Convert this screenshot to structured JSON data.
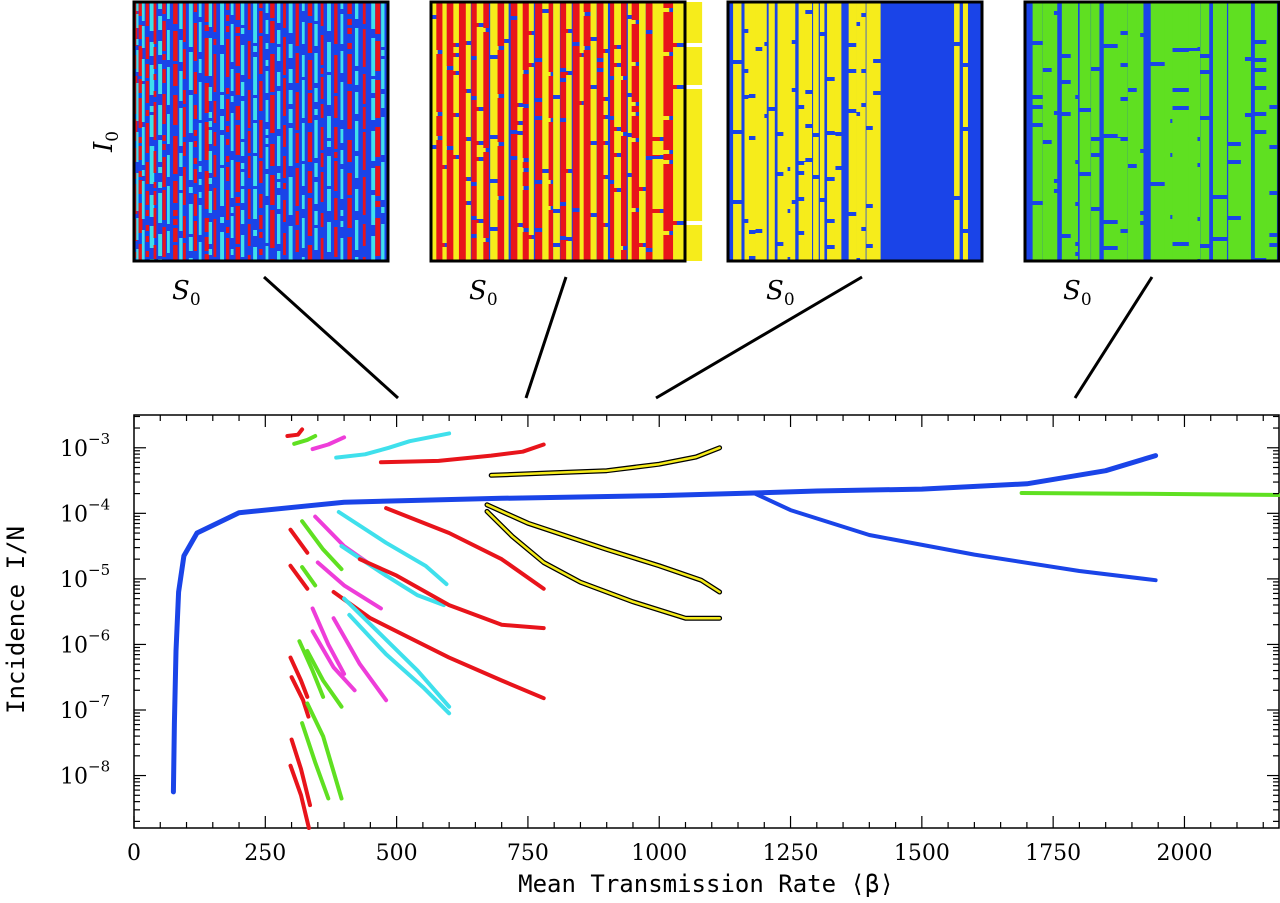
{
  "chart_data": {
    "type": "line",
    "title": "",
    "xlabel": "Mean Transmission Rate  ⟨β⟩",
    "ylabel": "Incidence  I/N",
    "xlim": [
      0,
      2180
    ],
    "ylim_log10": [
      -8.8,
      -2.5
    ],
    "yscale": "log",
    "grid": false,
    "x_ticks": [
      {
        "value": 0,
        "label": "0"
      },
      {
        "value": 250,
        "label": "250"
      },
      {
        "value": 500,
        "label": "500"
      },
      {
        "value": 750,
        "label": "750"
      },
      {
        "value": 1000,
        "label": "1000"
      },
      {
        "value": 1250,
        "label": "1250"
      },
      {
        "value": 1500,
        "label": "1500"
      },
      {
        "value": 1750,
        "label": "1750"
      },
      {
        "value": 2000,
        "label": "2000"
      }
    ],
    "y_ticks": [
      {
        "exp": -3,
        "base": "10",
        "sup": "−3"
      },
      {
        "exp": -4,
        "base": "10",
        "sup": "−4"
      },
      {
        "exp": -5,
        "base": "10",
        "sup": "−5"
      },
      {
        "exp": -6,
        "base": "10",
        "sup": "−6"
      },
      {
        "exp": -7,
        "base": "10",
        "sup": "−7"
      },
      {
        "exp": -8,
        "base": "10",
        "sup": "−8"
      }
    ],
    "series": [
      {
        "color": "#1a44e8",
        "width": 5,
        "outline": false,
        "points": [
          [
            75,
            -8.25
          ],
          [
            77,
            -7.2
          ],
          [
            80,
            -6.1
          ],
          [
            85,
            -5.2
          ],
          [
            95,
            -4.65
          ],
          [
            120,
            -4.3
          ],
          [
            200,
            -3.99
          ],
          [
            400,
            -3.83
          ],
          [
            700,
            -3.77
          ],
          [
            1000,
            -3.73
          ],
          [
            1180,
            -3.69
          ],
          [
            1300,
            -3.66
          ],
          [
            1500,
            -3.63
          ],
          [
            1700,
            -3.55
          ],
          [
            1850,
            -3.35
          ],
          [
            1945,
            -3.12
          ]
        ]
      },
      {
        "color": "#1a44e8",
        "width": 4,
        "outline": false,
        "points": [
          [
            1180,
            -3.69
          ],
          [
            1250,
            -3.95
          ],
          [
            1400,
            -4.33
          ],
          [
            1600,
            -4.63
          ],
          [
            1800,
            -4.88
          ],
          [
            1945,
            -5.02
          ]
        ]
      },
      {
        "color": "#5fe021",
        "width": 4,
        "outline": false,
        "points": [
          [
            1690,
            -3.69
          ],
          [
            1900,
            -3.7
          ],
          [
            2180,
            -3.72
          ]
        ]
      },
      {
        "color": "#e8141b",
        "width": 4,
        "outline": false,
        "points": [
          [
            292,
            -2.82
          ],
          [
            312,
            -2.8
          ],
          [
            320,
            -2.72
          ]
        ]
      },
      {
        "color": "#5fe021",
        "width": 4,
        "outline": false,
        "points": [
          [
            305,
            -2.94
          ],
          [
            330,
            -2.88
          ],
          [
            345,
            -2.82
          ]
        ]
      },
      {
        "color": "#ee3dd9",
        "width": 4,
        "outline": false,
        "points": [
          [
            340,
            -3.02
          ],
          [
            370,
            -2.95
          ],
          [
            400,
            -2.84
          ]
        ]
      },
      {
        "color": "#3fe0ec",
        "width": 4,
        "outline": false,
        "points": [
          [
            385,
            -3.15
          ],
          [
            440,
            -3.1
          ],
          [
            485,
            -3.0
          ],
          [
            525,
            -2.9
          ],
          [
            600,
            -2.78
          ]
        ]
      },
      {
        "color": "#e8141b",
        "width": 4,
        "outline": false,
        "points": [
          [
            470,
            -3.22
          ],
          [
            580,
            -3.2
          ],
          [
            680,
            -3.12
          ],
          [
            740,
            -3.06
          ],
          [
            780,
            -2.95
          ]
        ]
      },
      {
        "color": "#f6ec1b",
        "width": 4,
        "outline": true,
        "points": [
          [
            680,
            -3.42
          ],
          [
            800,
            -3.38
          ],
          [
            900,
            -3.35
          ],
          [
            1000,
            -3.25
          ],
          [
            1070,
            -3.14
          ],
          [
            1115,
            -3.0
          ]
        ]
      },
      {
        "color": "#e8141b",
        "width": 4,
        "outline": false,
        "points": [
          [
            298,
            -4.25
          ],
          [
            330,
            -4.6
          ]
        ]
      },
      {
        "color": "#e8141b",
        "width": 4,
        "outline": false,
        "points": [
          [
            298,
            -4.8
          ],
          [
            330,
            -5.15
          ]
        ]
      },
      {
        "color": "#5fe021",
        "width": 4,
        "outline": false,
        "points": [
          [
            320,
            -4.12
          ],
          [
            360,
            -4.55
          ],
          [
            395,
            -4.85
          ]
        ]
      },
      {
        "color": "#5fe021",
        "width": 4,
        "outline": false,
        "points": [
          [
            320,
            -4.82
          ],
          [
            345,
            -5.1
          ]
        ]
      },
      {
        "color": "#ee3dd9",
        "width": 4,
        "outline": false,
        "points": [
          [
            345,
            -4.05
          ],
          [
            400,
            -4.5
          ],
          [
            480,
            -4.95
          ]
        ]
      },
      {
        "color": "#ee3dd9",
        "width": 4,
        "outline": false,
        "points": [
          [
            350,
            -4.75
          ],
          [
            400,
            -5.1
          ],
          [
            470,
            -5.45
          ]
        ]
      },
      {
        "color": "#3fe0ec",
        "width": 4,
        "outline": false,
        "points": [
          [
            390,
            -3.98
          ],
          [
            480,
            -4.45
          ],
          [
            555,
            -4.8
          ],
          [
            595,
            -5.08
          ]
        ]
      },
      {
        "color": "#3fe0ec",
        "width": 4,
        "outline": false,
        "points": [
          [
            395,
            -4.5
          ],
          [
            470,
            -4.9
          ],
          [
            540,
            -5.25
          ],
          [
            590,
            -5.4
          ]
        ]
      },
      {
        "color": "#e8141b",
        "width": 4,
        "outline": false,
        "points": [
          [
            480,
            -3.92
          ],
          [
            600,
            -4.3
          ],
          [
            700,
            -4.7
          ],
          [
            780,
            -5.15
          ]
        ]
      },
      {
        "color": "#e8141b",
        "width": 4,
        "outline": false,
        "points": [
          [
            430,
            -4.7
          ],
          [
            500,
            -4.95
          ],
          [
            600,
            -5.4
          ],
          [
            700,
            -5.7
          ],
          [
            780,
            -5.75
          ]
        ]
      },
      {
        "color": "#e8141b",
        "width": 4,
        "outline": false,
        "points": [
          [
            380,
            -5.2
          ],
          [
            450,
            -5.6
          ],
          [
            600,
            -6.2
          ],
          [
            700,
            -6.55
          ],
          [
            780,
            -6.82
          ]
        ]
      },
      {
        "color": "#f6ec1b",
        "width": 4,
        "outline": true,
        "points": [
          [
            672,
            -3.87
          ],
          [
            750,
            -4.15
          ],
          [
            900,
            -4.55
          ],
          [
            1000,
            -4.8
          ],
          [
            1080,
            -5.02
          ],
          [
            1115,
            -5.2
          ]
        ]
      },
      {
        "color": "#f6ec1b",
        "width": 4,
        "outline": true,
        "points": [
          [
            672,
            -3.97
          ],
          [
            720,
            -4.35
          ],
          [
            780,
            -4.75
          ],
          [
            850,
            -5.05
          ],
          [
            950,
            -5.35
          ],
          [
            1050,
            -5.6
          ],
          [
            1115,
            -5.6
          ]
        ]
      },
      {
        "color": "#ee3dd9",
        "width": 4,
        "outline": false,
        "points": [
          [
            340,
            -5.45
          ],
          [
            370,
            -6.0
          ],
          [
            400,
            -6.45
          ]
        ]
      },
      {
        "color": "#ee3dd9",
        "width": 4,
        "outline": false,
        "points": [
          [
            340,
            -5.8
          ],
          [
            380,
            -6.35
          ],
          [
            420,
            -6.7
          ]
        ]
      },
      {
        "color": "#ee3dd9",
        "width": 4,
        "outline": false,
        "points": [
          [
            380,
            -5.6
          ],
          [
            430,
            -6.3
          ],
          [
            480,
            -6.85
          ]
        ]
      },
      {
        "color": "#3fe0ec",
        "width": 4,
        "outline": false,
        "points": [
          [
            400,
            -5.3
          ],
          [
            470,
            -5.85
          ],
          [
            540,
            -6.4
          ],
          [
            600,
            -6.95
          ]
        ]
      },
      {
        "color": "#3fe0ec",
        "width": 4,
        "outline": false,
        "points": [
          [
            410,
            -5.55
          ],
          [
            480,
            -6.15
          ],
          [
            550,
            -6.65
          ],
          [
            600,
            -7.05
          ]
        ]
      },
      {
        "color": "#5fe021",
        "width": 4,
        "outline": false,
        "points": [
          [
            330,
            -6.1
          ],
          [
            360,
            -6.55
          ],
          [
            395,
            -6.95
          ]
        ]
      },
      {
        "color": "#5fe021",
        "width": 4,
        "outline": false,
        "points": [
          [
            315,
            -5.95
          ],
          [
            340,
            -6.4
          ],
          [
            360,
            -6.8
          ]
        ]
      },
      {
        "color": "#e8141b",
        "width": 4,
        "outline": false,
        "points": [
          [
            298,
            -6.2
          ],
          [
            318,
            -6.55
          ],
          [
            330,
            -6.8
          ]
        ]
      },
      {
        "color": "#e8141b",
        "width": 4,
        "outline": false,
        "points": [
          [
            300,
            -6.5
          ],
          [
            322,
            -6.85
          ],
          [
            332,
            -7.1
          ]
        ]
      },
      {
        "color": "#5fe021",
        "width": 4,
        "outline": false,
        "points": [
          [
            320,
            -7.2
          ],
          [
            345,
            -7.8
          ],
          [
            370,
            -8.35
          ]
        ]
      },
      {
        "color": "#5fe021",
        "width": 4,
        "outline": false,
        "points": [
          [
            330,
            -6.9
          ],
          [
            360,
            -7.4
          ],
          [
            395,
            -8.35
          ]
        ]
      },
      {
        "color": "#e8141b",
        "width": 4,
        "outline": false,
        "points": [
          [
            300,
            -7.45
          ],
          [
            318,
            -7.9
          ],
          [
            335,
            -8.45
          ]
        ]
      },
      {
        "color": "#e8141b",
        "width": 4,
        "outline": false,
        "points": [
          [
            298,
            -7.85
          ],
          [
            318,
            -8.3
          ],
          [
            333,
            -8.8
          ]
        ]
      }
    ]
  },
  "insets": [
    {
      "s_label": "S",
      "s_sub": "0",
      "i_label": "I",
      "i_sub": "0",
      "colors": [
        "#1a44e8",
        "#e8141b",
        "#3fe0ec"
      ],
      "stripe_x": [
        0.2,
        0.9,
        1.8,
        3.1,
        4.6,
        6.2,
        7.7,
        9.5,
        11.2,
        13.0,
        15.4,
        17.8,
        19.3,
        21.6,
        23.5,
        25.5,
        27.8,
        29.4,
        31.3,
        33.9,
        36.2,
        38.1,
        40.0,
        42.1,
        44.8,
        46.9,
        49.3,
        51.8,
        53.6,
        56.3,
        58.7,
        60.9,
        63.6,
        66.1,
        68.4,
        71.0,
        73.5,
        76.0,
        78.8,
        81.3,
        84.0,
        87.0,
        90.1,
        93.4,
        95.0,
        97.3
      ],
      "stripe_w": [
        0.5,
        0.4,
        0.7,
        0.5,
        0.6,
        0.8,
        0.5,
        0.7,
        0.6,
        0.5,
        0.8,
        0.6,
        0.5,
        0.7,
        0.6,
        0.5,
        0.8,
        0.6,
        0.5,
        0.7,
        0.6,
        0.5,
        0.8,
        0.6,
        0.5,
        0.7,
        0.6,
        0.5,
        0.8,
        0.6,
        0.5,
        0.7,
        0.6,
        0.5,
        0.8,
        0.6,
        0.5,
        0.7,
        0.6,
        0.5,
        0.8,
        0.6,
        0.5,
        0.7,
        0.9,
        0.6
      ]
    },
    {
      "s_label": "S",
      "s_sub": "0",
      "colors": [
        "#1a44e8",
        "#f6ec1b",
        "#e8141b"
      ],
      "stripe_x": [
        0.0,
        2.1,
        4.5,
        6.2,
        8.8,
        11.0,
        13.7,
        15.9,
        18.0,
        20.6,
        23.3,
        26.2,
        28.8,
        31.4,
        34.0,
        36.1,
        38.5,
        41.0,
        43.8,
        46.3,
        48.1,
        50.9,
        53.2,
        55.8,
        58.5,
        60.1,
        62.8,
        65.3,
        67.9,
        70.5,
        72.1,
        74.8,
        77.5,
        79.0,
        81.9,
        84.6,
        87.2,
        91.5,
        95.3
      ],
      "stripe_w": [
        1.2,
        1.5,
        0.8,
        1.6,
        1.1,
        1.4,
        0.9,
        1.3,
        1.6,
        1.0,
        1.5,
        1.2,
        0.8,
        1.4,
        1.1,
        1.6,
        0.9,
        1.3,
        1.5,
        0.8,
        1.2,
        1.4,
        1.0,
        1.6,
        0.9,
        1.3,
        1.1,
        1.5,
        0.8,
        1.2,
        1.6,
        1.0,
        1.4,
        2.0,
        1.2,
        2.5,
        3.0,
        2.4,
        5.2
      ]
    },
    {
      "s_label": "S",
      "s_sub": "0",
      "colors": [
        "#1a44e8",
        "#f6ec1b"
      ],
      "stripe_x": [
        2.0,
        6.5,
        8.0,
        10.8,
        13.5,
        16.0,
        19.5,
        21.8,
        24.5,
        27.8,
        30.0,
        33.5,
        36.2,
        39.0,
        42.0,
        47.5,
        50.5,
        52.0,
        54.5,
        57.0,
        89.0,
        92.5
      ],
      "stripe_w": [
        1.5,
        0.8,
        1.3,
        1.6,
        0.8,
        1.1,
        1.8,
        1.5,
        0.9,
        1.2,
        1.4,
        1.0,
        0.8,
        1.5,
        1.2,
        1.4,
        0.9,
        1.0,
        1.2,
        1.4,
        1.0,
        0.9
      ]
    },
    {
      "s_label": "S",
      "s_sub": "0",
      "colors": [
        "#1a44e8",
        "#5fe021"
      ],
      "stripe_x": [
        3.0,
        7.0,
        10.5,
        14.5,
        18.0,
        21.5,
        26.0,
        31.0,
        36.5,
        40.5,
        44.0,
        49.5,
        55.0,
        58.0,
        64.5,
        69.0,
        74.0,
        80.0,
        85.0,
        90.5,
        95.0
      ],
      "stripe_w": [
        1.8,
        2.0,
        1.0,
        2.4,
        1.3,
        2.0,
        1.5,
        3.0,
        1.8,
        2.2,
        1.2,
        3.5,
        1.4,
        4.5,
        2.0,
        1.6,
        2.5,
        3.0,
        1.8,
        2.6,
        1.9
      ]
    }
  ]
}
